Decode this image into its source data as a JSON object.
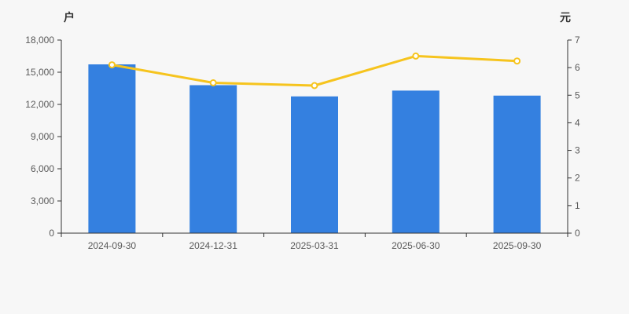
{
  "page": {
    "background_color": "#f7f7f7",
    "axis_color": "#333333",
    "tick_text_color": "#595959"
  },
  "chart_data": {
    "type": "combo",
    "categories": [
      "2024-09-30",
      "2024-12-31",
      "2025-03-31",
      "2025-06-30",
      "2025-09-30"
    ],
    "series": [
      {
        "name": "bar-series",
        "type": "bar",
        "yaxis": "left",
        "color": "#3480e0",
        "values": [
          15730,
          13790,
          12750,
          13290,
          12820
        ]
      },
      {
        "name": "line-series",
        "type": "line",
        "yaxis": "right",
        "color": "#f6c41e",
        "marker": "hollow-circle",
        "marker_fill": "#ffffff",
        "values": [
          6.1,
          5.45,
          5.35,
          6.42,
          6.24
        ]
      }
    ],
    "left_axis": {
      "name": "户",
      "min": 0,
      "max": 18000,
      "tick_interval": 3000,
      "tick_labels": [
        "0",
        "3,000",
        "6,000",
        "9,000",
        "12,000",
        "15,000",
        "18,000"
      ]
    },
    "right_axis": {
      "name": "元",
      "min": 0,
      "max": 7,
      "tick_interval": 1,
      "tick_labels": [
        "0",
        "1",
        "2",
        "3",
        "4",
        "5",
        "6",
        "7"
      ]
    },
    "grid": false,
    "legend": "none",
    "title": ""
  }
}
